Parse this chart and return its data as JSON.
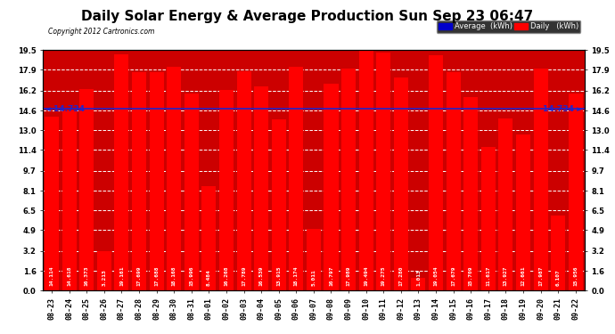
{
  "title": "Daily Solar Energy & Average Production Sun Sep 23 06:47",
  "copyright": "Copyright 2012 Cartronics.com",
  "categories": [
    "08-23",
    "08-24",
    "08-25",
    "08-26",
    "08-27",
    "08-28",
    "08-29",
    "08-30",
    "08-31",
    "09-01",
    "09-02",
    "09-03",
    "09-04",
    "09-05",
    "09-06",
    "09-07",
    "09-08",
    "09-09",
    "09-10",
    "09-11",
    "09-12",
    "09-13",
    "09-14",
    "09-15",
    "09-16",
    "09-17",
    "09-18",
    "09-19",
    "09-20",
    "09-21",
    "09-22"
  ],
  "values": [
    14.114,
    14.618,
    16.373,
    3.213,
    19.161,
    17.699,
    17.688,
    18.168,
    15.996,
    8.484,
    16.268,
    17.789,
    16.539,
    13.915,
    18.174,
    5.011,
    16.797,
    17.989,
    19.494,
    19.275,
    17.28,
    1.013,
    19.054,
    17.679,
    15.709,
    11.617,
    13.927,
    12.661,
    17.987,
    6.107,
    15.956
  ],
  "average": 14.734,
  "bar_color": "#ff0000",
  "avg_line_color": "#2222cc",
  "background_color": "#ffffff",
  "plot_bg_color": "#cc0000",
  "yticks": [
    0.0,
    1.6,
    3.2,
    4.9,
    6.5,
    8.1,
    9.7,
    11.4,
    13.0,
    14.6,
    16.2,
    17.9,
    19.5
  ],
  "ylim": [
    0,
    19.5
  ],
  "legend_avg_color": "#0000cc",
  "legend_daily_color": "#ff0000",
  "title_fontsize": 11,
  "tick_fontsize": 6,
  "avg_label": "14.734",
  "grid_color": "#ffffff",
  "grid_style": "--"
}
